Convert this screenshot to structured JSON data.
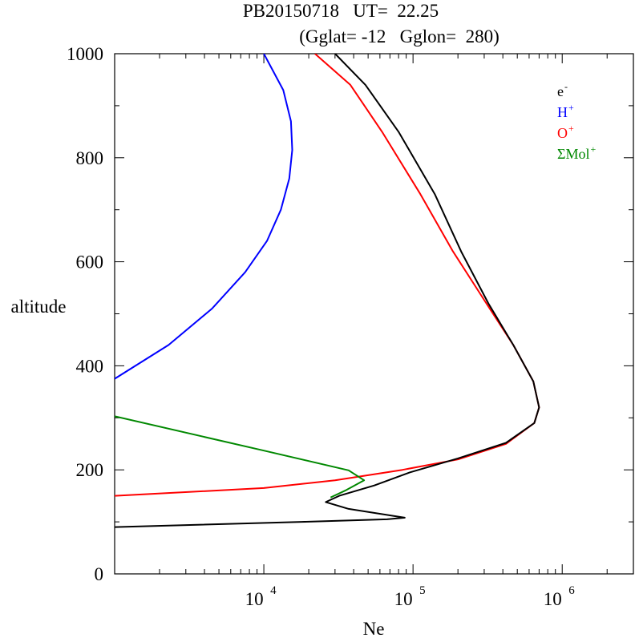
{
  "chart_data": {
    "type": "line",
    "title_line1": "PB20150718   UT=  22.25",
    "title_line2": "(Gglat= -12   Gglon=  280)",
    "xlabel": "Ne",
    "ylabel": "altitude",
    "xscale": "log",
    "xlim": [
      1000,
      3000000
    ],
    "ylim": [
      0,
      1000
    ],
    "x_tick_labels": [
      {
        "base": "10",
        "exp": "4",
        "value": 10000
      },
      {
        "base": "10",
        "exp": "5",
        "value": 100000
      },
      {
        "base": "10",
        "exp": "6",
        "value": 1000000
      }
    ],
    "y_tick_labels": [
      "0",
      "200",
      "400",
      "600",
      "800",
      "1000"
    ],
    "legend_position": "top-right",
    "legend": [
      {
        "base": "e",
        "sup": "-",
        "color": "#000000"
      },
      {
        "base": "H",
        "sup": "+",
        "color": "#0000ff"
      },
      {
        "base": "O",
        "sup": "+",
        "color": "#ff0000"
      },
      {
        "base": "ΣMol",
        "sup": "+",
        "color": "#008800"
      }
    ],
    "series": [
      {
        "name": "H+",
        "color": "#0000ff",
        "points": [
          [
            1000,
            375
          ],
          [
            2300,
            440
          ],
          [
            4500,
            510
          ],
          [
            7500,
            580
          ],
          [
            10500,
            640
          ],
          [
            13000,
            700
          ],
          [
            14800,
            760
          ],
          [
            15500,
            815
          ],
          [
            15200,
            870
          ],
          [
            13500,
            930
          ],
          [
            10000,
            1000
          ]
        ]
      },
      {
        "name": "O+",
        "color": "#ff0000",
        "points": [
          [
            1000,
            150
          ],
          [
            10000,
            165
          ],
          [
            30000,
            180
          ],
          [
            85000,
            200
          ],
          [
            200000,
            220
          ],
          [
            420000,
            250
          ],
          [
            650000,
            290
          ],
          [
            700000,
            320
          ],
          [
            640000,
            370
          ],
          [
            470000,
            440
          ],
          [
            310000,
            520
          ],
          [
            185000,
            620
          ],
          [
            112000,
            730
          ],
          [
            62000,
            850
          ],
          [
            38000,
            940
          ],
          [
            22000,
            1000
          ]
        ]
      },
      {
        "name": "ΣMol+",
        "color": "#008800",
        "points": [
          [
            1000,
            303
          ],
          [
            10000,
            237
          ],
          [
            37000,
            199
          ],
          [
            47000,
            180
          ],
          [
            35000,
            160
          ],
          [
            28000,
            147
          ]
        ]
      },
      {
        "name": "e-",
        "color": "#000000",
        "points": [
          [
            1000,
            90
          ],
          [
            18000,
            100
          ],
          [
            67000,
            105
          ],
          [
            88000,
            108
          ],
          [
            37000,
            125
          ],
          [
            26000,
            138
          ],
          [
            32000,
            150
          ],
          [
            55000,
            170
          ],
          [
            95000,
            195
          ],
          [
            200000,
            222
          ],
          [
            420000,
            252
          ],
          [
            650000,
            290
          ],
          [
            700000,
            320
          ],
          [
            640000,
            370
          ],
          [
            470000,
            440
          ],
          [
            320000,
            520
          ],
          [
            210000,
            620
          ],
          [
            140000,
            730
          ],
          [
            80000,
            850
          ],
          [
            48000,
            940
          ],
          [
            30000,
            1000
          ]
        ]
      }
    ]
  }
}
